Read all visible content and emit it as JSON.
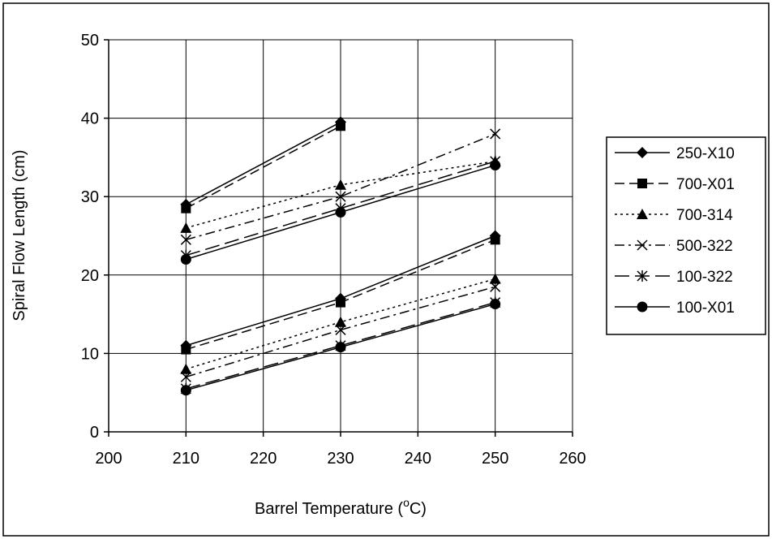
{
  "chart_data": {
    "type": "line",
    "title": "",
    "xlabel": "Barrel Temperature (",
    "xlabel_superscript": "o",
    "xlabel_suffix": "C)",
    "ylabel": "Spiral Flow Length (cm)",
    "xlim": [
      200,
      260
    ],
    "ylim": [
      0,
      50
    ],
    "xticks": [
      200,
      210,
      220,
      230,
      240,
      250,
      260
    ],
    "yticks": [
      0,
      10,
      20,
      30,
      40,
      50
    ],
    "grid": true,
    "legend_position": "right",
    "series": [
      {
        "name": "250-X10",
        "marker": "diamond",
        "dash": "solid",
        "groups": [
          {
            "x": [
              210,
              230
            ],
            "y": [
              29,
              39.5
            ]
          },
          {
            "x": [
              210,
              230,
              250
            ],
            "y": [
              11,
              17,
              25
            ]
          }
        ]
      },
      {
        "name": "700-X01",
        "marker": "square",
        "dash": "dash",
        "groups": [
          {
            "x": [
              210,
              230
            ],
            "y": [
              28.5,
              39
            ]
          },
          {
            "x": [
              210,
              230,
              250
            ],
            "y": [
              10.5,
              16.5,
              24.5
            ]
          }
        ]
      },
      {
        "name": "700-314",
        "marker": "triangle",
        "dash": "dot",
        "groups": [
          {
            "x": [
              210,
              230,
              250
            ],
            "y": [
              26,
              31.5,
              34.5
            ]
          },
          {
            "x": [
              210,
              230,
              250
            ],
            "y": [
              8,
              14,
              19.5
            ]
          }
        ]
      },
      {
        "name": "500-322",
        "marker": "x",
        "dash": "dashdot",
        "groups": [
          {
            "x": [
              210,
              230,
              250
            ],
            "y": [
              24.5,
              30,
              38
            ]
          },
          {
            "x": [
              210,
              230,
              250
            ],
            "y": [
              7,
              13,
              18.5
            ]
          }
        ]
      },
      {
        "name": "100-322",
        "marker": "star",
        "dash": "longdash",
        "groups": [
          {
            "x": [
              210,
              230,
              250
            ],
            "y": [
              22.5,
              28.5,
              34.5
            ]
          },
          {
            "x": [
              210,
              230,
              250
            ],
            "y": [
              5.5,
              11,
              16.5
            ]
          }
        ]
      },
      {
        "name": "100-X01",
        "marker": "circle",
        "dash": "solid",
        "groups": [
          {
            "x": [
              210,
              230,
              250
            ],
            "y": [
              22,
              28,
              34
            ]
          },
          {
            "x": [
              210,
              230,
              250
            ],
            "y": [
              5.3,
              10.8,
              16.3
            ]
          }
        ]
      }
    ]
  }
}
